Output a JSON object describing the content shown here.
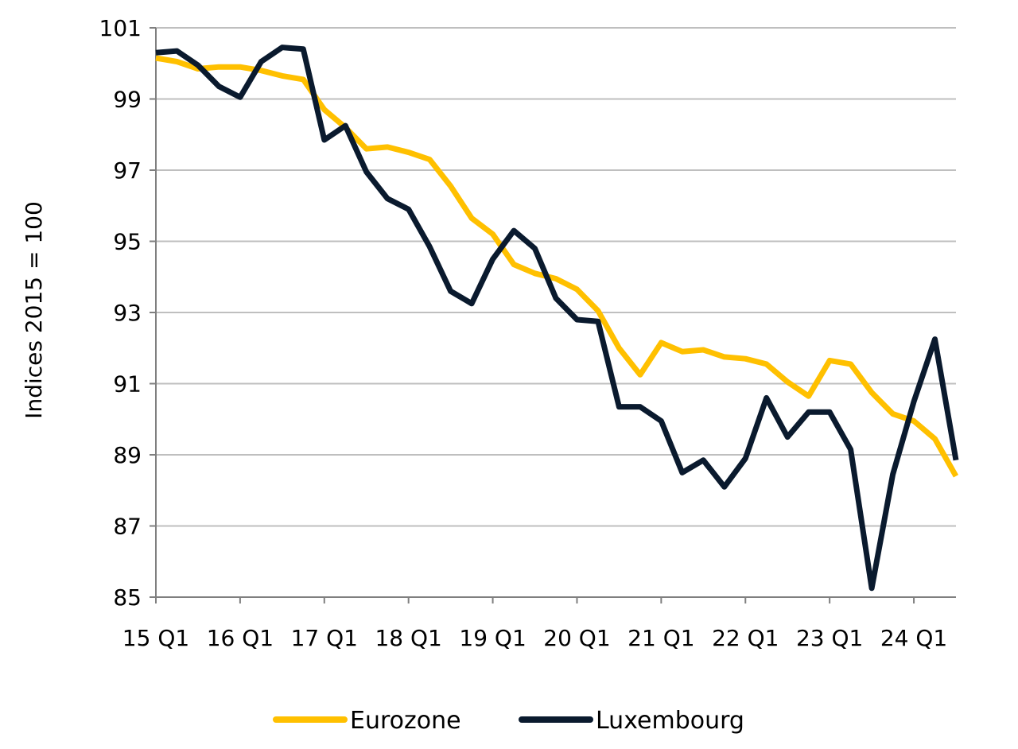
{
  "chart_data": {
    "type": "line",
    "title": "",
    "xlabel": "",
    "ylabel": "Indices 2015 = 100",
    "ylim": [
      85,
      101
    ],
    "yticks": [
      85,
      87,
      89,
      91,
      93,
      95,
      97,
      99,
      101
    ],
    "xtick_labels": [
      "15 Q1",
      "16 Q1",
      "17 Q1",
      "18 Q1",
      "19 Q1",
      "20 Q1",
      "21 Q1",
      "22 Q1",
      "23 Q1",
      "24 Q1"
    ],
    "x": [
      "2015Q1",
      "2015Q2",
      "2015Q3",
      "2015Q4",
      "2016Q1",
      "2016Q2",
      "2016Q3",
      "2016Q4",
      "2017Q1",
      "2017Q2",
      "2017Q3",
      "2017Q4",
      "2018Q1",
      "2018Q2",
      "2018Q3",
      "2018Q4",
      "2019Q1",
      "2019Q2",
      "2019Q3",
      "2019Q4",
      "2020Q1",
      "2020Q2",
      "2020Q3",
      "2020Q4",
      "2021Q1",
      "2021Q2",
      "2021Q3",
      "2021Q4",
      "2022Q1",
      "2022Q2",
      "2022Q3",
      "2022Q4",
      "2023Q1",
      "2023Q2",
      "2023Q3",
      "2023Q4",
      "2024Q1",
      "2024Q2",
      "2024Q3"
    ],
    "grid": true,
    "legend_position": "bottom",
    "series": [
      {
        "name": "Eurozone",
        "color": "#FFC000",
        "values": [
          100.15,
          100.05,
          99.85,
          99.9,
          99.9,
          99.8,
          99.65,
          99.55,
          98.7,
          98.2,
          97.6,
          97.65,
          97.5,
          97.3,
          96.55,
          95.65,
          95.2,
          94.35,
          94.1,
          93.95,
          93.65,
          93.05,
          92.0,
          91.25,
          92.15,
          91.9,
          91.95,
          91.75,
          91.7,
          91.55,
          91.05,
          90.65,
          91.65,
          91.55,
          90.75,
          90.15,
          89.95,
          89.45,
          88.4
        ]
      },
      {
        "name": "Luxembourg",
        "color": "#0A1A2E",
        "values": [
          100.3,
          100.35,
          99.95,
          99.35,
          99.05,
          100.05,
          100.45,
          100.4,
          97.85,
          98.25,
          96.95,
          96.2,
          95.9,
          94.85,
          93.6,
          93.25,
          94.5,
          95.3,
          94.8,
          93.4,
          92.8,
          92.75,
          90.35,
          90.35,
          89.95,
          88.5,
          88.85,
          88.1,
          88.9,
          90.6,
          89.5,
          90.2,
          90.2,
          89.15,
          85.25,
          88.45,
          90.5,
          92.25,
          88.85
        ]
      }
    ]
  }
}
